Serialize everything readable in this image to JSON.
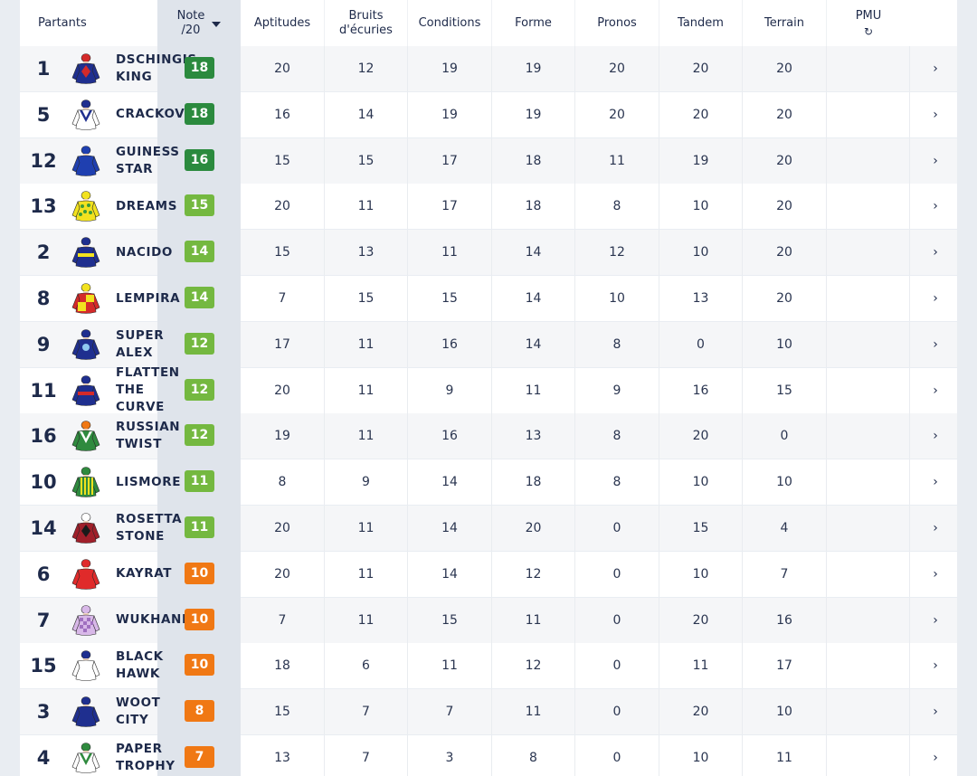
{
  "header": {
    "partants": "Partants",
    "note_line1": "Note",
    "note_line2": "/20",
    "aptitudes": "Aptitudes",
    "bruits_line1": "Bruits",
    "bruits_line2": "d'écuries",
    "conditions": "Conditions",
    "forme": "Forme",
    "pronos": "Pronos",
    "tandem": "Tandem",
    "terrain": "Terrain",
    "pmu": "PMU",
    "refresh_icon": "↻",
    "sort_icon": "caret-down-icon"
  },
  "colors": {
    "dark_green": "#2b8a3e",
    "light_green": "#74b840",
    "orange": "#f07814",
    "navy": "#1e2a4a"
  },
  "chevron": "›",
  "rows": [
    {
      "num": "1",
      "name": "DSCHINGIS\nKING",
      "note": "18",
      "grade": "dark",
      "scores": [
        "20",
        "12",
        "19",
        "19",
        "20",
        "20",
        "20"
      ],
      "silk": {
        "body": "#1f2f8f",
        "cap": "#d42a2a",
        "accent": "#d42a2a",
        "pattern": "diamond"
      }
    },
    {
      "num": "5",
      "name": "CRACKOVIA",
      "note": "18",
      "grade": "dark",
      "scores": [
        "16",
        "14",
        "19",
        "19",
        "20",
        "20",
        "20"
      ],
      "silk": {
        "body": "#ffffff",
        "cap": "#1f2f8f",
        "accent": "#1f2f8f",
        "pattern": "vee"
      }
    },
    {
      "num": "12",
      "name": "GUINESS\nSTAR",
      "note": "16",
      "grade": "dark",
      "scores": [
        "15",
        "15",
        "17",
        "18",
        "11",
        "19",
        "20"
      ],
      "silk": {
        "body": "#1f3fb0",
        "cap": "#1f3fb0",
        "accent": "#1f3fb0",
        "pattern": "plain"
      }
    },
    {
      "num": "13",
      "name": "DREAMS",
      "note": "15",
      "grade": "light",
      "scores": [
        "20",
        "11",
        "17",
        "18",
        "8",
        "10",
        "20"
      ],
      "silk": {
        "body": "#f2e21f",
        "cap": "#f2e21f",
        "accent": "#3a9b3a",
        "pattern": "dots"
      }
    },
    {
      "num": "2",
      "name": "NACIDO",
      "note": "14",
      "grade": "light",
      "scores": [
        "15",
        "13",
        "11",
        "14",
        "12",
        "10",
        "20"
      ],
      "silk": {
        "body": "#1f2f8f",
        "cap": "#1f2f8f",
        "accent": "#f2e21f",
        "pattern": "band"
      }
    },
    {
      "num": "8",
      "name": "LEMPIRA",
      "note": "14",
      "grade": "light",
      "scores": [
        "7",
        "15",
        "15",
        "14",
        "10",
        "13",
        "20"
      ],
      "silk": {
        "body": "#d42a2a",
        "cap": "#f2e21f",
        "accent": "#f2e21f",
        "pattern": "quarter"
      }
    },
    {
      "num": "9",
      "name": "SUPER\nALEX",
      "note": "12",
      "grade": "light",
      "scores": [
        "17",
        "11",
        "16",
        "14",
        "8",
        "0",
        "10"
      ],
      "silk": {
        "body": "#1f2f8f",
        "cap": "#1f2f8f",
        "accent": "#8fc8f0",
        "pattern": "circle"
      }
    },
    {
      "num": "11",
      "name": "FLATTEN\nTHE\nCURVE",
      "note": "12",
      "grade": "light",
      "scores": [
        "20",
        "11",
        "9",
        "11",
        "9",
        "16",
        "15"
      ],
      "silk": {
        "body": "#1f2f8f",
        "cap": "#1f2f8f",
        "accent": "#d42a2a",
        "pattern": "band"
      }
    },
    {
      "num": "16",
      "name": "RUSSIAN\nTWIST",
      "note": "12",
      "grade": "light",
      "scores": [
        "19",
        "11",
        "16",
        "13",
        "8",
        "20",
        "0"
      ],
      "silk": {
        "body": "#2f8a3e",
        "cap": "#f07814",
        "accent": "#ffffff",
        "pattern": "vee"
      }
    },
    {
      "num": "10",
      "name": "LISMORE",
      "note": "11",
      "grade": "light",
      "scores": [
        "8",
        "9",
        "14",
        "18",
        "8",
        "10",
        "10"
      ],
      "silk": {
        "body": "#2f8a3e",
        "cap": "#2f8a3e",
        "accent": "#f2e21f",
        "pattern": "stripes"
      }
    },
    {
      "num": "14",
      "name": "ROSETTA\nSTONE",
      "note": "11",
      "grade": "light",
      "scores": [
        "20",
        "11",
        "14",
        "20",
        "0",
        "15",
        "4"
      ],
      "silk": {
        "body": "#a01f2a",
        "cap": "#ffffff",
        "accent": "#1a1a1a",
        "pattern": "diamond"
      }
    },
    {
      "num": "6",
      "name": "KAYRAT",
      "note": "10",
      "grade": "orange",
      "scores": [
        "20",
        "11",
        "14",
        "12",
        "0",
        "10",
        "7"
      ],
      "silk": {
        "body": "#e02a2a",
        "cap": "#e02a2a",
        "accent": "#ffffff",
        "pattern": "plain"
      }
    },
    {
      "num": "7",
      "name": "WUKHANN",
      "note": "10",
      "grade": "orange",
      "scores": [
        "7",
        "11",
        "15",
        "11",
        "0",
        "20",
        "16"
      ],
      "silk": {
        "body": "#d8b8e8",
        "cap": "#d8b8e8",
        "accent": "#a070c0",
        "pattern": "check"
      }
    },
    {
      "num": "15",
      "name": "BLACK\nHAWK",
      "note": "10",
      "grade": "orange",
      "scores": [
        "18",
        "6",
        "11",
        "12",
        "0",
        "11",
        "17"
      ],
      "silk": {
        "body": "#ffffff",
        "cap": "#1f2f8f",
        "accent": "#1f2f8f",
        "pattern": "plain"
      }
    },
    {
      "num": "3",
      "name": "WOOT\nCITY",
      "note": "8",
      "grade": "orange",
      "scores": [
        "15",
        "7",
        "7",
        "11",
        "0",
        "20",
        "10"
      ],
      "silk": {
        "body": "#1f2f8f",
        "cap": "#1f2f8f",
        "accent": "#ffffff",
        "pattern": "plain"
      }
    },
    {
      "num": "4",
      "name": "PAPER\nTROPHY",
      "note": "7",
      "grade": "orange",
      "scores": [
        "13",
        "7",
        "3",
        "8",
        "0",
        "10",
        "11"
      ],
      "silk": {
        "body": "#ffffff",
        "cap": "#2f8a3e",
        "accent": "#2f8a3e",
        "pattern": "vee"
      }
    }
  ]
}
